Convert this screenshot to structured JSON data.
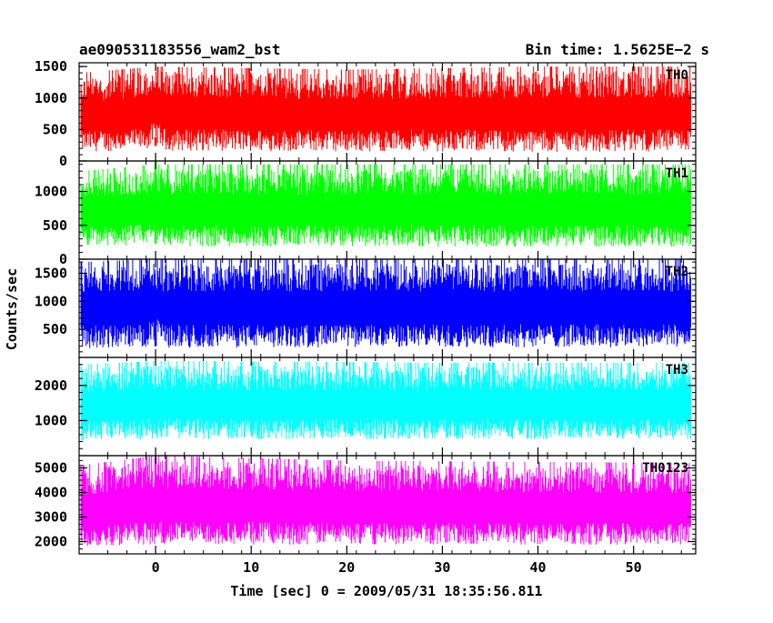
{
  "chart_data": {
    "type": "line",
    "title_left": "ae090531183556_wam2_bst",
    "title_right": "Bin time: 1.5625E−2 s",
    "xlabel": "Time [sec] 0 = 2009/05/31 18:35:56.811",
    "ylabel": "Counts/sec",
    "xlim": [
      -8,
      56.5
    ],
    "x_range_data": [
      -7.8,
      56.0
    ],
    "x_ticks": [
      0,
      10,
      20,
      30,
      40,
      50
    ],
    "panels": [
      {
        "name": "TH0",
        "color": "#ff0000",
        "ylim": [
          0,
          1560
        ],
        "y_ticks": [
          0,
          500,
          1000,
          1500
        ],
        "y_tick_labels": [
          "0",
          "500",
          "1000",
          "1500"
        ],
        "low_envelope": [
          [
            -7.8,
            80
          ],
          [
            -1,
            100
          ],
          [
            0,
            250
          ],
          [
            1,
            90
          ],
          [
            30,
            80
          ],
          [
            40,
            70
          ],
          [
            56,
            80
          ]
        ],
        "high_envelope": [
          [
            -7.8,
            1400
          ],
          [
            0,
            1500
          ],
          [
            20,
            1450
          ],
          [
            40,
            1500
          ],
          [
            56,
            1500
          ]
        ],
        "annotations": [
          {
            "x": 0,
            "low": 240,
            "high": 380
          }
        ]
      },
      {
        "name": "TH1",
        "color": "#00ff00",
        "ylim": [
          0,
          1450
        ],
        "y_ticks": [
          0,
          500,
          1000
        ],
        "y_tick_labels": [
          "0",
          "500",
          "1000"
        ],
        "low_envelope": [
          [
            -7.8,
            120
          ],
          [
            -1,
            150
          ],
          [
            0,
            250
          ],
          [
            1,
            120
          ],
          [
            56,
            120
          ]
        ],
        "high_envelope": [
          [
            -7.8,
            1300
          ],
          [
            0,
            1400
          ],
          [
            30,
            1400
          ],
          [
            56,
            1400
          ]
        ],
        "annotations": [
          {
            "x": 0,
            "low": 230,
            "high": 1440
          }
        ]
      },
      {
        "name": "TH2",
        "color": "#0000ff",
        "ylim": [
          0,
          1750
        ],
        "y_ticks": [
          500,
          1000,
          1500
        ],
        "y_tick_labels": [
          "500",
          "1000",
          "1500"
        ],
        "low_envelope": [
          [
            -7.8,
            80
          ],
          [
            -1,
            100
          ],
          [
            0,
            250
          ],
          [
            1,
            90
          ],
          [
            56,
            100
          ]
        ],
        "high_envelope": [
          [
            -7.8,
            1700
          ],
          [
            0,
            1750
          ],
          [
            30,
            1750
          ],
          [
            56,
            1750
          ]
        ],
        "annotations": [
          {
            "x": 0,
            "low": 200,
            "high": 720
          }
        ]
      },
      {
        "name": "TH3",
        "color": "#00ffff",
        "ylim": [
          0,
          2800
        ],
        "y_ticks": [
          1000,
          2000
        ],
        "y_tick_labels": [
          "1000",
          "2000"
        ],
        "low_envelope": [
          [
            -7.8,
            300
          ],
          [
            0,
            350
          ],
          [
            45,
            350
          ],
          [
            56,
            350
          ]
        ],
        "high_envelope": [
          [
            -7.8,
            2600
          ],
          [
            0,
            2700
          ],
          [
            30,
            2650
          ],
          [
            56,
            2650
          ]
        ],
        "annotations": []
      },
      {
        "name": "TH0123",
        "color": "#ff00ff",
        "ylim": [
          1500,
          5500
        ],
        "y_ticks": [
          2000,
          3000,
          4000,
          5000
        ],
        "y_tick_labels": [
          "2000",
          "3000",
          "4000",
          "5000"
        ],
        "low_envelope": [
          [
            -7.8,
            1600
          ],
          [
            0,
            1700
          ],
          [
            56,
            1700
          ]
        ],
        "high_envelope": [
          [
            -7.8,
            5100
          ],
          [
            0,
            5500
          ],
          [
            20,
            5300
          ],
          [
            56,
            5200
          ]
        ],
        "annotations": [
          {
            "x": 0,
            "low": 2200,
            "high": 5450
          }
        ]
      }
    ]
  }
}
